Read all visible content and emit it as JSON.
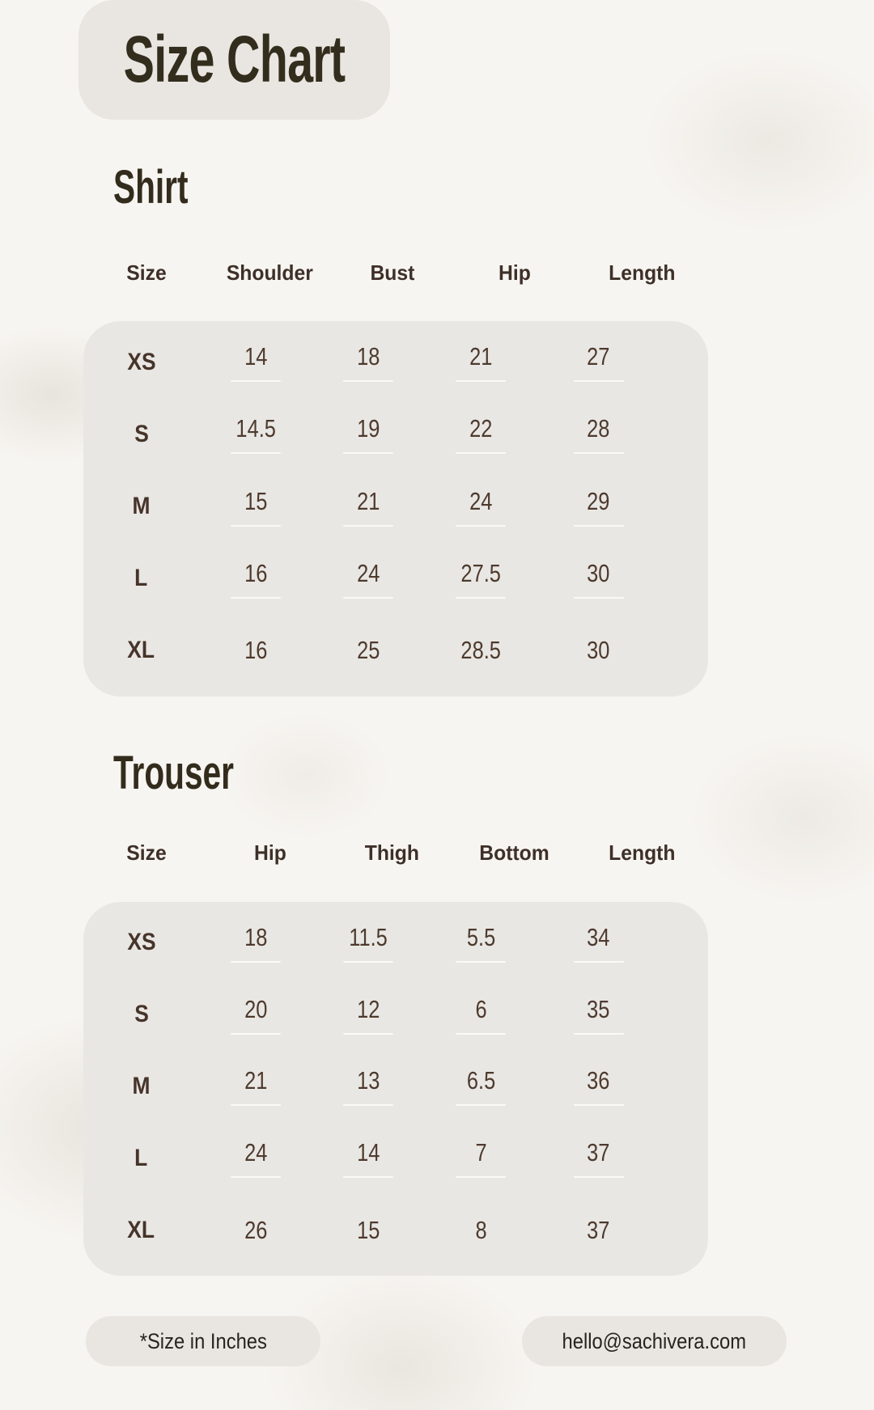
{
  "page": {
    "title": "Size Chart",
    "footer": {
      "note": "*Size in Inches",
      "email": "hello@sachivera.com"
    },
    "colors": {
      "background": "#f7f5f1",
      "panel": "#e9e7e3",
      "heading_text": "#332c1c",
      "header_text": "#3e3028",
      "value_text": "#4d3a2e",
      "underline": "#fbfaf7"
    }
  },
  "shirt": {
    "heading": "Shirt",
    "columns": [
      "Size",
      "Shoulder",
      "Bust",
      "Hip",
      "Length"
    ],
    "rows": [
      {
        "size": "XS",
        "v1": "14",
        "v2": "18",
        "v3": "21",
        "v4": "27"
      },
      {
        "size": "S",
        "v1": "14.5",
        "v2": "19",
        "v3": "22",
        "v4": "28"
      },
      {
        "size": "M",
        "v1": "15",
        "v2": "21",
        "v3": "24",
        "v4": "29"
      },
      {
        "size": "L",
        "v1": "16",
        "v2": "24",
        "v3": "27.5",
        "v4": "30"
      },
      {
        "size": "XL",
        "v1": "16",
        "v2": "25",
        "v3": "28.5",
        "v4": "30"
      }
    ]
  },
  "trouser": {
    "heading": "Trouser",
    "columns": [
      "Size",
      "Hip",
      "Thigh",
      "Bottom",
      "Length"
    ],
    "rows": [
      {
        "size": "XS",
        "v1": "18",
        "v2": "11.5",
        "v3": "5.5",
        "v4": "34"
      },
      {
        "size": "S",
        "v1": "20",
        "v2": "12",
        "v3": "6",
        "v4": "35"
      },
      {
        "size": "M",
        "v1": "21",
        "v2": "13",
        "v3": "6.5",
        "v4": "36"
      },
      {
        "size": "L",
        "v1": "24",
        "v2": "14",
        "v3": "7",
        "v4": "37"
      },
      {
        "size": "XL",
        "v1": "26",
        "v2": "15",
        "v3": "8",
        "v4": "37"
      }
    ]
  },
  "chart_data": [
    {
      "type": "table",
      "title": "Shirt",
      "columns": [
        "Size",
        "Shoulder",
        "Bust",
        "Hip",
        "Length"
      ],
      "rows": [
        [
          "XS",
          14,
          18,
          21,
          27
        ],
        [
          "S",
          14.5,
          19,
          22,
          28
        ],
        [
          "M",
          15,
          21,
          24,
          29
        ],
        [
          "L",
          16,
          24,
          27.5,
          30
        ],
        [
          "XL",
          16,
          25,
          28.5,
          30
        ]
      ],
      "units": "inches"
    },
    {
      "type": "table",
      "title": "Trouser",
      "columns": [
        "Size",
        "Hip",
        "Thigh",
        "Bottom",
        "Length"
      ],
      "rows": [
        [
          "XS",
          18,
          11.5,
          5.5,
          34
        ],
        [
          "S",
          20,
          12,
          6,
          35
        ],
        [
          "M",
          21,
          13,
          6.5,
          36
        ],
        [
          "L",
          24,
          14,
          7,
          37
        ],
        [
          "XL",
          26,
          15,
          8,
          37
        ]
      ],
      "units": "inches"
    }
  ]
}
